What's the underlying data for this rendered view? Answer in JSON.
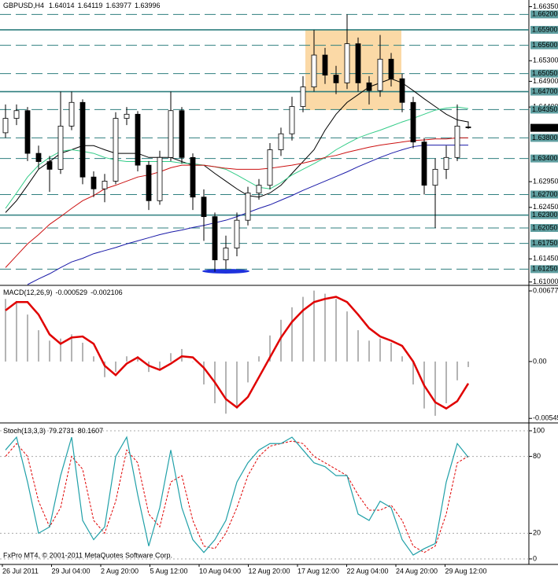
{
  "chart_data": [
    {
      "type": "candlestick",
      "title": "GBPUSD,H4",
      "ylim": [
        1.6095,
        1.6648
      ],
      "yticks": [
        {
          "value": 1.6635,
          "label": "1.66350"
        },
        {
          "value": 1.653,
          "label": "1.65300"
        },
        {
          "value": 1.649,
          "label": "1.64900"
        },
        {
          "value": 1.644,
          "label": "1.64400"
        },
        {
          "value": 1.6295,
          "label": "1.62950"
        },
        {
          "value": 1.6245,
          "label": "1.62450"
        },
        {
          "value": 1.6145,
          "label": "1.61450"
        },
        {
          "value": 1.61,
          "label": "1.61000"
        }
      ],
      "levels": [
        {
          "value": 1.662,
          "label": "1.66200",
          "style": "dashed"
        },
        {
          "value": 1.659,
          "label": "1.65900",
          "style": "solid"
        },
        {
          "value": 1.656,
          "label": "1.65600",
          "style": "dashed"
        },
        {
          "value": 1.6505,
          "label": "1.65050",
          "style": "dashed"
        },
        {
          "value": 1.647,
          "label": "1.64700",
          "style": "solid"
        },
        {
          "value": 1.6435,
          "label": "1.64350",
          "style": "dashed"
        },
        {
          "value": 1.638,
          "label": "1.63800",
          "style": "dashed"
        },
        {
          "value": 1.634,
          "label": "1.63400",
          "style": "dashed"
        },
        {
          "value": 1.627,
          "label": "1.62700",
          "style": "dashed"
        },
        {
          "value": 1.623,
          "label": "1.62300",
          "style": "solid"
        },
        {
          "value": 1.6205,
          "label": "1.62050",
          "style": "dashed"
        },
        {
          "value": 1.6175,
          "label": "1.61750",
          "style": "dashed"
        },
        {
          "value": 1.6125,
          "label": "1.61250",
          "style": "dashed"
        }
      ],
      "level_color": "#2f7f7f",
      "candles": [
        [
          1.639,
          1.6445,
          1.638,
          1.6418
        ],
        [
          1.6418,
          1.6445,
          1.6405,
          1.6433
        ],
        [
          1.6433,
          1.644,
          1.6335,
          1.635
        ],
        [
          1.635,
          1.6365,
          1.632,
          1.6334
        ],
        [
          1.6334,
          1.6345,
          1.6275,
          1.6319
        ],
        [
          1.6319,
          1.647,
          1.631,
          1.6403
        ],
        [
          1.6403,
          1.647,
          1.6395,
          1.6449
        ],
        [
          1.6449,
          1.6455,
          1.629,
          1.6304
        ],
        [
          1.6304,
          1.6315,
          1.6265,
          1.6281
        ],
        [
          1.6281,
          1.631,
          1.6255,
          1.6296
        ],
        [
          1.6296,
          1.643,
          1.629,
          1.6418
        ],
        [
          1.6418,
          1.644,
          1.6405,
          1.6426
        ],
        [
          1.6426,
          1.6432,
          1.6315,
          1.6327
        ],
        [
          1.6327,
          1.6335,
          1.624,
          1.6258
        ],
        [
          1.6258,
          1.6355,
          1.625,
          1.6342
        ],
        [
          1.6342,
          1.647,
          1.6335,
          1.6433
        ],
        [
          1.6433,
          1.644,
          1.633,
          1.6342
        ],
        [
          1.6342,
          1.635,
          1.624,
          1.6265
        ],
        [
          1.6265,
          1.628,
          1.618,
          1.6227
        ],
        [
          1.6227,
          1.6235,
          1.612,
          1.6143
        ],
        [
          1.6143,
          1.619,
          1.6125,
          1.6166
        ],
        [
          1.6166,
          1.6235,
          1.615,
          1.622
        ],
        [
          1.622,
          1.6285,
          1.621,
          1.6273
        ],
        [
          1.6273,
          1.63,
          1.626,
          1.6288
        ],
        [
          1.6288,
          1.637,
          1.628,
          1.6357
        ],
        [
          1.6357,
          1.64,
          1.6345,
          1.6388
        ],
        [
          1.6388,
          1.646,
          1.6375,
          1.6441
        ],
        [
          1.6441,
          1.65,
          1.643,
          1.6479
        ],
        [
          1.6479,
          1.659,
          1.647,
          1.6541
        ],
        [
          1.6541,
          1.6555,
          1.6485,
          1.6502
        ],
        [
          1.6502,
          1.652,
          1.6465,
          1.6487
        ],
        [
          1.6487,
          1.662,
          1.6475,
          1.6563
        ],
        [
          1.6563,
          1.6575,
          1.647,
          1.6487
        ],
        [
          1.6487,
          1.65,
          1.6445,
          1.6472
        ],
        [
          1.6472,
          1.658,
          1.646,
          1.6533
        ],
        [
          1.6533,
          1.6545,
          1.648,
          1.6495
        ],
        [
          1.6495,
          1.6505,
          1.643,
          1.6449
        ],
        [
          1.6449,
          1.646,
          1.636,
          1.6372
        ],
        [
          1.6372,
          1.638,
          1.627,
          1.6288
        ],
        [
          1.6288,
          1.634,
          1.6205,
          1.6319
        ],
        [
          1.6319,
          1.6365,
          1.63,
          1.6342
        ],
        [
          1.6342,
          1.6445,
          1.6335,
          1.6403
        ],
        [
          1.64014,
          1.64119,
          1.63977,
          1.63996
        ]
      ],
      "series": [
        {
          "color": "#000000",
          "values": [
            1.6235,
            1.6258,
            1.6288,
            1.6319,
            1.6334,
            1.635,
            1.6357,
            1.6365,
            1.6365,
            1.6357,
            1.635,
            1.635,
            1.635,
            1.6342,
            1.6342,
            1.6342,
            1.6334,
            1.6327,
            1.6327,
            1.6311,
            1.6296,
            1.6281,
            1.6268,
            1.6265,
            1.6273,
            1.6288,
            1.6311,
            1.6334,
            1.6357,
            1.6395,
            1.6426,
            1.6449,
            1.6464,
            1.6479,
            1.6487,
            1.6495,
            1.6487,
            1.6472,
            1.6456,
            1.6441,
            1.6426,
            1.6415,
            1.6411
          ]
        },
        {
          "color": "#33cc88",
          "values": [
            1.6243,
            1.6273,
            1.6304,
            1.6327,
            1.6342,
            1.6354,
            1.6357,
            1.6354,
            1.635,
            1.6342,
            1.6337,
            1.6334,
            1.6334,
            1.6334,
            1.6334,
            1.6334,
            1.6331,
            1.633,
            1.6327,
            1.6324,
            1.6319,
            1.6308,
            1.6296,
            1.6284,
            1.6281,
            1.6293,
            1.6308,
            1.6319,
            1.633,
            1.6342,
            1.6357,
            1.6369,
            1.638,
            1.6388,
            1.6395,
            1.6403,
            1.6411,
            1.6418,
            1.6426,
            1.6434,
            1.6438,
            1.644,
            1.6437
          ]
        },
        {
          "color": "#cc1111",
          "values": [
            1.6128,
            1.6151,
            1.6174,
            1.6192,
            1.6212,
            1.6227,
            1.6243,
            1.6258,
            1.6268,
            1.6281,
            1.6288,
            1.6296,
            1.6304,
            1.6308,
            1.6314,
            1.6322,
            1.6327,
            1.6327,
            1.6327,
            1.6324,
            1.6321,
            1.6319,
            1.6319,
            1.6319,
            1.6321,
            1.6324,
            1.6327,
            1.6331,
            1.6336,
            1.6342,
            1.6346,
            1.6352,
            1.6357,
            1.6362,
            1.6366,
            1.6369,
            1.6372,
            1.6375,
            1.6376,
            1.6378,
            1.6378,
            1.638,
            1.638
          ]
        },
        {
          "color": "#1a1aa8",
          "values": [
            null,
            null,
            1.6095,
            1.6106,
            1.6116,
            1.6128,
            1.6139,
            1.6146,
            1.6155,
            1.6161,
            1.6167,
            1.6174,
            1.618,
            1.6186,
            1.6192,
            1.6197,
            1.6201,
            1.6206,
            1.621,
            1.6215,
            1.622,
            1.6227,
            1.6235,
            1.6243,
            1.625,
            1.6259,
            1.6268,
            1.6278,
            1.6287,
            1.6296,
            1.6305,
            1.6314,
            1.6324,
            1.6333,
            1.6342,
            1.635,
            1.6357,
            1.6363,
            1.6366,
            1.6366,
            1.6366,
            1.6366,
            1.6366
          ]
        }
      ]
    },
    {
      "type": "macd",
      "title": "MACD(12,26,9)",
      "ylim": [
        -0.00581,
        0.00715
      ],
      "yticks": [
        0.00677,
        {
          "value": 0,
          "label": "0.00"
        },
        -0.00545
      ],
      "main_color": "#b4b4b4",
      "signal_color": "#e00000",
      "main": [
        0.006,
        0.0058,
        0.0045,
        0.003,
        0.002,
        0.0022,
        0.0026,
        0.0018,
        0.0005,
        -0.0015,
        -0.001,
        0.0005,
        0.0005,
        -0.001,
        -0.0008,
        0.0008,
        0.0012,
        0.0,
        -0.0022,
        -0.004,
        -0.005,
        -0.0045,
        -0.002,
        0.0005,
        0.0025,
        0.004,
        0.0052,
        0.0062,
        0.0068,
        0.0065,
        0.006,
        0.0048,
        0.003,
        0.002,
        0.0022,
        0.0018,
        0.0005,
        -0.0022,
        -0.0045,
        -0.0052,
        -0.004,
        -0.0018,
        -0.000529
      ],
      "signal": [
        0.0049,
        0.0057,
        0.0057,
        0.0045,
        0.0026,
        0.0017,
        0.0023,
        0.0024,
        0.0017,
        -0.0004,
        -0.0013,
        -0.0002,
        0.0004,
        -0.0004,
        -0.0008,
        -0.0002,
        0.0005,
        0.0004,
        -0.0006,
        -0.002,
        -0.0036,
        -0.0044,
        -0.0034,
        -0.0015,
        0.0004,
        0.0023,
        0.0038,
        0.0049,
        0.0057,
        0.006,
        0.0062,
        0.0057,
        0.0045,
        0.0032,
        0.0024,
        0.002,
        0.0015,
        0.0,
        -0.0023,
        -0.0039,
        -0.0045,
        -0.0038,
        -0.002106
      ]
    },
    {
      "type": "stochastic",
      "title": "Stoch(13,3,3)",
      "ylim": [
        -3.7,
        104.9
      ],
      "yticks": [
        100,
        80,
        20,
        0
      ],
      "main_color": "#20a0a8",
      "signal_color": "#e00000",
      "main": [
        85,
        95,
        60,
        20,
        25,
        65,
        95,
        30,
        15,
        25,
        80,
        95,
        50,
        10,
        40,
        85,
        40,
        15,
        5,
        15,
        30,
        60,
        75,
        85,
        90,
        90,
        95,
        85,
        75,
        72,
        65,
        65,
        35,
        30,
        45,
        40,
        15,
        3,
        8,
        12,
        60,
        90,
        79.2731
      ],
      "signal": [
        80,
        90,
        80,
        45,
        25,
        40,
        80,
        70,
        30,
        20,
        45,
        85,
        75,
        35,
        25,
        60,
        65,
        30,
        10,
        8,
        20,
        40,
        65,
        80,
        88,
        90,
        92,
        90,
        80,
        75,
        70,
        65,
        50,
        38,
        38,
        42,
        30,
        10,
        5,
        10,
        35,
        75,
        80.1607
      ],
      "time_labels": [
        "26 Jul 2011",
        "29 Jul 04:00",
        "2 Aug 20:00",
        "5 Aug 12:00",
        "10 Aug 04:00",
        "12 Aug 20:00",
        "17 Aug 12:00",
        "22 Aug 04:00",
        "24 Aug 20:00",
        "29 Aug 12:00"
      ],
      "footer": "FxPro MT4, © 2001-2011 MetaQuotes Software Corp."
    }
  ]
}
